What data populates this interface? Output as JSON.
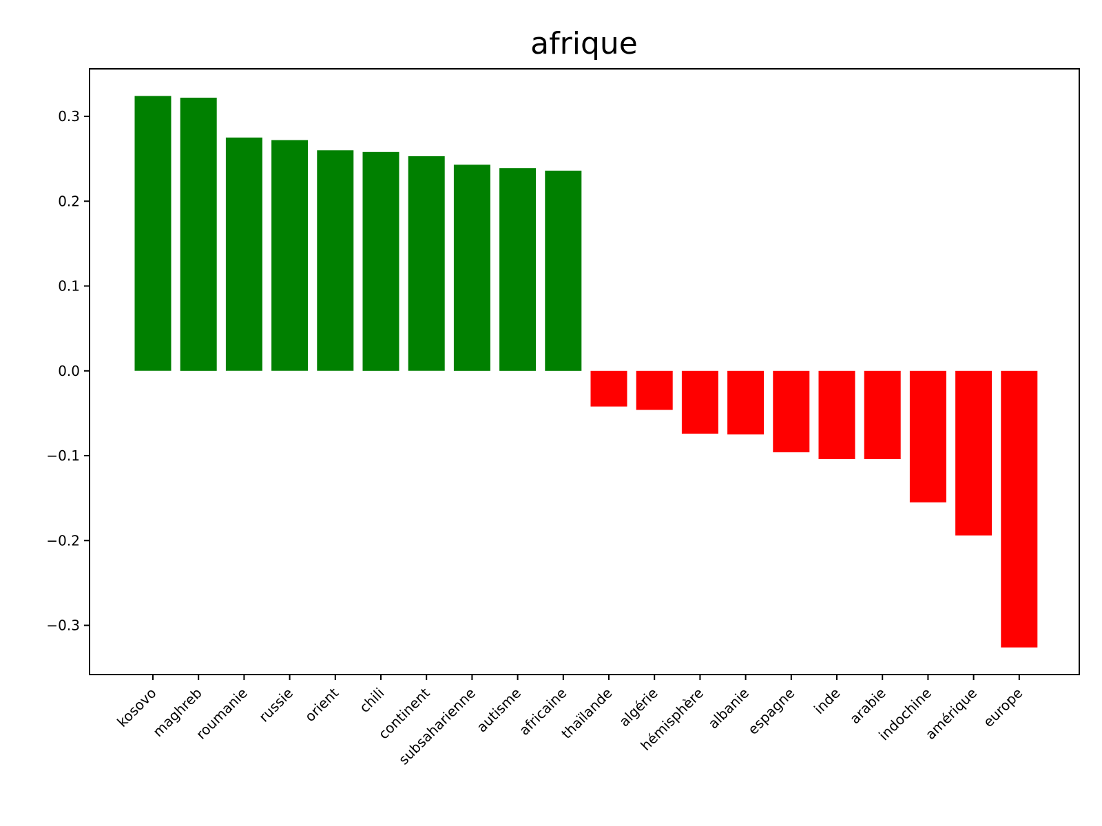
{
  "chart_data": {
    "type": "bar",
    "title": "afrique",
    "xlabel": "",
    "ylabel": "",
    "categories": [
      "kosovo",
      "maghreb",
      "roumanie",
      "russie",
      "orient",
      "chili",
      "continent",
      "subsaharienne",
      "autisme",
      "africaine",
      "thaïlande",
      "algérie",
      "hémisphère",
      "albanie",
      "espagne",
      "inde",
      "arabie",
      "indochine",
      "amérique",
      "europe"
    ],
    "values": [
      0.324,
      0.322,
      0.275,
      0.272,
      0.26,
      0.258,
      0.253,
      0.243,
      0.239,
      0.236,
      -0.042,
      -0.046,
      -0.074,
      -0.075,
      -0.096,
      -0.104,
      -0.104,
      -0.155,
      -0.194,
      -0.326
    ],
    "ylim": [
      -0.358,
      0.356
    ],
    "yticks": [
      -0.3,
      -0.2,
      -0.1,
      0.0,
      0.1,
      0.2,
      0.3
    ],
    "ytick_labels": [
      "−0.3",
      "−0.2",
      "−0.1",
      "0.0",
      "0.1",
      "0.2",
      "0.3"
    ],
    "positive_color": "#008000",
    "negative_color": "#ff0000",
    "grid": false,
    "legend": "none"
  }
}
